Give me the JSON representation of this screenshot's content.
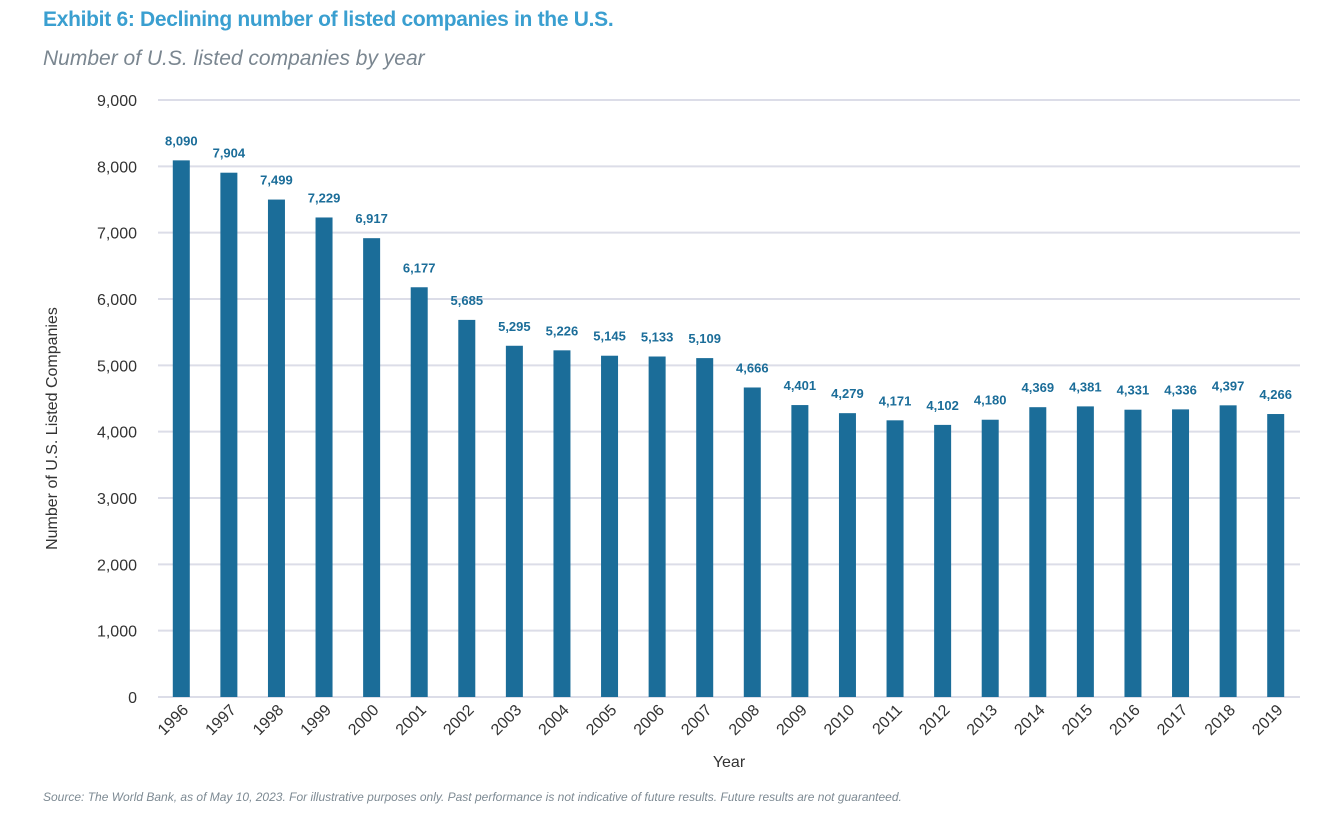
{
  "title": "Exhibit 6: Declining number of listed companies in the U.S.",
  "subtitle": "Number of U.S. listed companies by year",
  "source": "Source: The World Bank, as of May 10, 2023. For illustrative purposes only. Past performance is not indicative of future results. Future results are not guaranteed.",
  "chart_data": {
    "type": "bar",
    "title": "Exhibit 6: Declining number of listed companies in the U.S.",
    "subtitle": "Number of U.S. listed companies by year",
    "xlabel": "Year",
    "ylabel": "Number of U.S. Listed Companies",
    "ylim": [
      0,
      9000
    ],
    "yticks": [
      0,
      1000,
      2000,
      3000,
      4000,
      5000,
      6000,
      7000,
      8000,
      9000
    ],
    "ytick_labels": [
      "0",
      "1,000",
      "2,000",
      "3,000",
      "4,000",
      "5,000",
      "6,000",
      "7,000",
      "8,000",
      "9,000"
    ],
    "grid": true,
    "bar_color": "#1b6d99",
    "categories": [
      "1996",
      "1997",
      "1998",
      "1999",
      "2000",
      "2001",
      "2002",
      "2003",
      "2004",
      "2005",
      "2006",
      "2007",
      "2008",
      "2009",
      "2010",
      "2011",
      "2012",
      "2013",
      "2014",
      "2015",
      "2016",
      "2017",
      "2018",
      "2019"
    ],
    "values": [
      8090,
      7904,
      7499,
      7229,
      6917,
      6177,
      5685,
      5295,
      5226,
      5145,
      5133,
      5109,
      4666,
      4401,
      4279,
      4171,
      4102,
      4180,
      4369,
      4381,
      4331,
      4336,
      4397,
      4266
    ]
  }
}
